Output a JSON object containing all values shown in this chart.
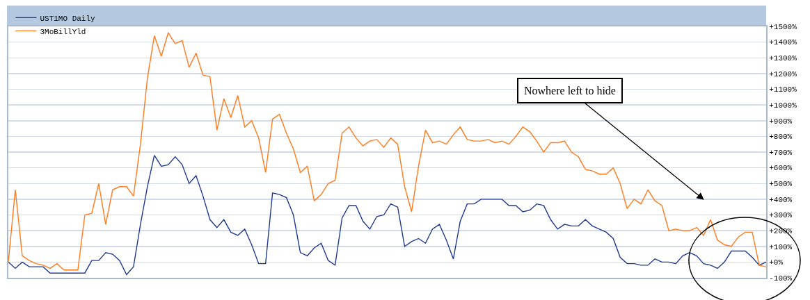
{
  "chart_data": {
    "type": "line",
    "grid": "y",
    "legend": "top left",
    "tick_labels": "y",
    "line_style": "solid",
    "categories": [
      null,
      null,
      null,
      null,
      null,
      null,
      null,
      null,
      null,
      null,
      null,
      null,
      null,
      null,
      null,
      null,
      null,
      null,
      null,
      null,
      null,
      null,
      null,
      null,
      null,
      null,
      null,
      null,
      null,
      null,
      null,
      null,
      null,
      null,
      null,
      null,
      null,
      null,
      null,
      null,
      null,
      null,
      null,
      null,
      null,
      null,
      null,
      null,
      null,
      null,
      null,
      null,
      null,
      null,
      null,
      null,
      null,
      null,
      null,
      null,
      null,
      null,
      null,
      null,
      null,
      null,
      null,
      null,
      null,
      null,
      null,
      null,
      null,
      null,
      null,
      null,
      null,
      null,
      null,
      null,
      null,
      null,
      null,
      null,
      null,
      null,
      null,
      null,
      null,
      null,
      null,
      null,
      null,
      null,
      null,
      null,
      null,
      null,
      null,
      null,
      null,
      null,
      null,
      null,
      null,
      null,
      null,
      null,
      null,
      null
    ],
    "ylim": [
      -100,
      1500
    ],
    "yticks": [
      {
        "value": -100,
        "label": "-100%"
      },
      {
        "value": 0,
        "label": "+0%"
      },
      {
        "value": 100,
        "label": "+100%"
      },
      {
        "value": 200,
        "label": "+200%"
      },
      {
        "value": 300,
        "label": "+300%"
      },
      {
        "value": 400,
        "label": "+400%"
      },
      {
        "value": 500,
        "label": "+500%"
      },
      {
        "value": 600,
        "label": "+600%"
      },
      {
        "value": 700,
        "label": "+700%"
      },
      {
        "value": 800,
        "label": "+800%"
      },
      {
        "value": 900,
        "label": "+900%"
      },
      {
        "value": 1000,
        "label": "+1000%"
      },
      {
        "value": 1100,
        "label": "+1100%"
      },
      {
        "value": 1200,
        "label": "+1200%"
      },
      {
        "value": 1300,
        "label": "+1300%"
      },
      {
        "value": 1400,
        "label": "+1400%"
      },
      {
        "value": 1500,
        "label": "+1500%"
      }
    ],
    "annotations": [
      "Nowhere left to hide"
    ],
    "series": [
      {
        "name": "UST1MO Daily",
        "color": "#1f3a93",
        "values": [
          0,
          -40,
          0,
          -30,
          -30,
          -30,
          -70,
          -70,
          -70,
          -70,
          -70,
          -70,
          10,
          10,
          60,
          50,
          10,
          -80,
          -30,
          240,
          480,
          680,
          610,
          620,
          670,
          620,
          500,
          550,
          420,
          270,
          220,
          270,
          190,
          170,
          210,
          110,
          -10,
          -10,
          440,
          430,
          410,
          300,
          60,
          40,
          90,
          120,
          10,
          -20,
          280,
          360,
          360,
          260,
          210,
          290,
          300,
          370,
          350,
          100,
          130,
          150,
          120,
          210,
          240,
          140,
          20,
          260,
          370,
          370,
          400,
          400,
          400,
          400,
          360,
          360,
          320,
          330,
          370,
          360,
          270,
          210,
          240,
          230,
          230,
          270,
          230,
          210,
          190,
          150,
          30,
          -10,
          -10,
          -20,
          -20,
          20,
          0,
          0,
          -10,
          40,
          60,
          40,
          -10,
          -20,
          -40,
          0,
          70,
          70,
          70,
          30,
          -20,
          0
        ]
      },
      {
        "name": "3MoBillYld",
        "color": "#ff7a1a",
        "values": [
          0,
          460,
          40,
          10,
          -10,
          -20,
          -40,
          -10,
          -50,
          -50,
          -50,
          300,
          310,
          500,
          240,
          460,
          480,
          480,
          420,
          750,
          1170,
          1440,
          1310,
          1460,
          1390,
          1410,
          1240,
          1330,
          1190,
          1180,
          840,
          1040,
          920,
          1060,
          860,
          900,
          790,
          570,
          910,
          940,
          820,
          720,
          570,
          610,
          390,
          430,
          500,
          520,
          820,
          860,
          790,
          740,
          770,
          780,
          730,
          790,
          750,
          480,
          320,
          610,
          840,
          760,
          770,
          750,
          810,
          860,
          780,
          770,
          770,
          780,
          760,
          770,
          750,
          800,
          860,
          830,
          770,
          700,
          760,
          760,
          770,
          700,
          670,
          590,
          580,
          560,
          560,
          600,
          500,
          340,
          400,
          370,
          460,
          390,
          360,
          200,
          210,
          200,
          200,
          220,
          170,
          270,
          140,
          110,
          100,
          160,
          190,
          190,
          -20,
          -30
        ]
      }
    ]
  }
}
